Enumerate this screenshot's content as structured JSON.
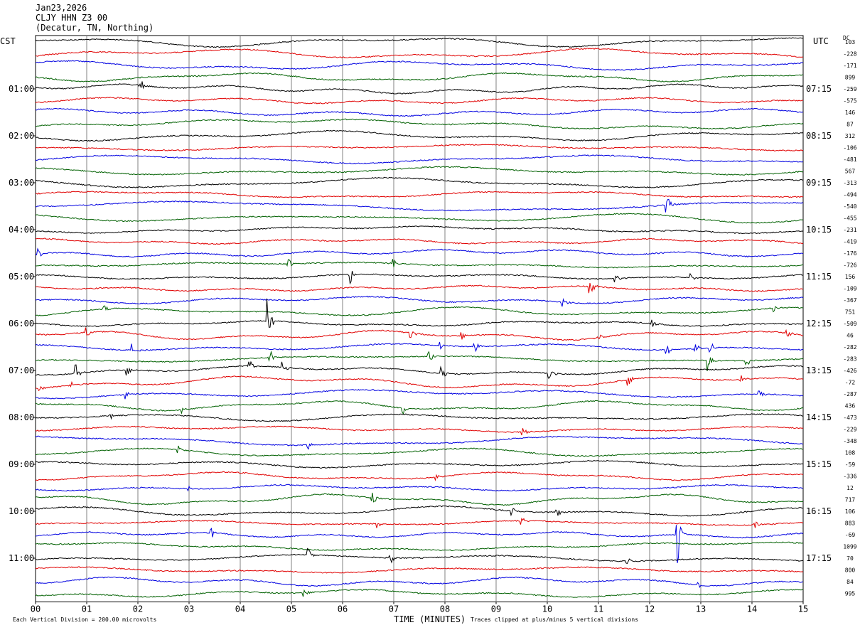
{
  "header": {
    "date": "Jan23,2026",
    "station": "CLJY HHN Z3 00",
    "location": "(Decatur, TN, Northing)"
  },
  "left_axis_title": "CST",
  "right_axis_title": "UTC",
  "dc_title": "DC",
  "footer": {
    "scale": "Each Vertical Division = 200.00 microvolts",
    "xlabel": "TIME (MINUTES)",
    "clip_note": "Traces clipped at plus/minus 5 vertical divisions"
  },
  "colors": {
    "trace_cycle": [
      "#000000",
      "#e00000",
      "#0000e0",
      "#006000"
    ],
    "grid": "#808080"
  },
  "chart_data": {
    "type": "line",
    "title": "CLJY HHN Z3 00 (Decatur, TN, Northing) Jan23,2026",
    "xlabel": "TIME (MINUTES)",
    "xlim": [
      0,
      15
    ],
    "x_ticks": [
      "00",
      "01",
      "02",
      "03",
      "04",
      "05",
      "06",
      "07",
      "08",
      "09",
      "10",
      "11",
      "12",
      "13",
      "14",
      "15"
    ],
    "row_count": 48,
    "left_time_labels": [
      {
        "row": 4,
        "label": "01:00"
      },
      {
        "row": 8,
        "label": "02:00"
      },
      {
        "row": 12,
        "label": "03:00"
      },
      {
        "row": 16,
        "label": "04:00"
      },
      {
        "row": 20,
        "label": "05:00"
      },
      {
        "row": 24,
        "label": "06:00"
      },
      {
        "row": 28,
        "label": "07:00"
      },
      {
        "row": 32,
        "label": "08:00"
      },
      {
        "row": 36,
        "label": "09:00"
      },
      {
        "row": 40,
        "label": "10:00"
      },
      {
        "row": 44,
        "label": "11:00"
      }
    ],
    "right_time_labels": [
      {
        "row": 4,
        "label": "07:15"
      },
      {
        "row": 8,
        "label": "08:15"
      },
      {
        "row": 12,
        "label": "09:15"
      },
      {
        "row": 16,
        "label": "10:15"
      },
      {
        "row": 20,
        "label": "11:15"
      },
      {
        "row": 24,
        "label": "12:15"
      },
      {
        "row": 28,
        "label": "13:15"
      },
      {
        "row": 32,
        "label": "14:15"
      },
      {
        "row": 36,
        "label": "15:15"
      },
      {
        "row": 40,
        "label": "16:15"
      },
      {
        "row": 44,
        "label": "17:15"
      }
    ],
    "dc_offsets": [
      "103",
      "-228",
      "-171",
      "899",
      "-259",
      "-575",
      "146",
      "87",
      "312",
      "-106",
      "-481",
      "567",
      "-313",
      "-494",
      "-540",
      "-455",
      "-231",
      "-419",
      "-176",
      "-726",
      "156",
      "-109",
      "-367",
      "751",
      "-509",
      "46",
      "-282",
      "-283",
      "-426",
      "-72",
      "-287",
      "436",
      "-473",
      "-229",
      "-348",
      "108",
      "-59",
      "-336",
      "12",
      "717",
      "106",
      "883",
      "-69",
      "1099",
      "70",
      "800",
      "84",
      "995"
    ],
    "events": [
      {
        "row": 4,
        "minute": 2.05,
        "amp": 0.6
      },
      {
        "row": 14,
        "minute": 12.35,
        "amp": 1.0
      },
      {
        "row": 18,
        "minute": 0.05,
        "amp": 0.5
      },
      {
        "row": 19,
        "minute": 4.95,
        "amp": 0.5
      },
      {
        "row": 19,
        "minute": 7.0,
        "amp": 0.5
      },
      {
        "row": 20,
        "minute": 6.15,
        "amp": 0.9
      },
      {
        "row": 20,
        "minute": 12.8,
        "amp": 0.4
      },
      {
        "row": 20,
        "minute": 11.35,
        "amp": 0.3
      },
      {
        "row": 21,
        "minute": 10.85,
        "amp": 0.8
      },
      {
        "row": 22,
        "minute": 10.3,
        "amp": 0.5
      },
      {
        "row": 23,
        "minute": 1.35,
        "amp": 0.4
      },
      {
        "row": 23,
        "minute": 14.45,
        "amp": 0.3
      },
      {
        "row": 24,
        "minute": 4.55,
        "amp": 2.2
      },
      {
        "row": 24,
        "minute": 12.05,
        "amp": 0.4
      },
      {
        "row": 25,
        "minute": 1.0,
        "amp": 0.5
      },
      {
        "row": 25,
        "minute": 7.35,
        "amp": 0.4
      },
      {
        "row": 25,
        "minute": 8.35,
        "amp": 0.3
      },
      {
        "row": 25,
        "minute": 11.0,
        "amp": 0.4
      },
      {
        "row": 25,
        "minute": 14.7,
        "amp": 0.4
      },
      {
        "row": 26,
        "minute": 1.9,
        "amp": 0.6
      },
      {
        "row": 26,
        "minute": 7.9,
        "amp": 0.4
      },
      {
        "row": 26,
        "minute": 8.6,
        "amp": 0.4
      },
      {
        "row": 26,
        "minute": 12.35,
        "amp": 0.5
      },
      {
        "row": 26,
        "minute": 12.9,
        "amp": 0.5
      },
      {
        "row": 26,
        "minute": 13.2,
        "amp": 0.6
      },
      {
        "row": 27,
        "minute": 4.6,
        "amp": 0.5
      },
      {
        "row": 27,
        "minute": 7.7,
        "amp": 0.7
      },
      {
        "row": 27,
        "minute": 13.15,
        "amp": 1.0
      },
      {
        "row": 27,
        "minute": 13.9,
        "amp": 0.6
      },
      {
        "row": 28,
        "minute": 0.8,
        "amp": 0.7
      },
      {
        "row": 28,
        "minute": 1.8,
        "amp": 0.5
      },
      {
        "row": 28,
        "minute": 4.2,
        "amp": 0.6
      },
      {
        "row": 28,
        "minute": 4.85,
        "amp": 0.6
      },
      {
        "row": 28,
        "minute": 7.95,
        "amp": 0.6
      },
      {
        "row": 28,
        "minute": 10.05,
        "amp": 0.5
      },
      {
        "row": 29,
        "minute": 0.1,
        "amp": 0.4
      },
      {
        "row": 29,
        "minute": 0.7,
        "amp": 0.4
      },
      {
        "row": 29,
        "minute": 11.6,
        "amp": 0.5
      },
      {
        "row": 29,
        "minute": 13.8,
        "amp": 0.4
      },
      {
        "row": 30,
        "minute": 1.75,
        "amp": 0.4
      },
      {
        "row": 30,
        "minute": 14.15,
        "amp": 0.5
      },
      {
        "row": 31,
        "minute": 2.85,
        "amp": 0.4
      },
      {
        "row": 31,
        "minute": 7.2,
        "amp": 0.6
      },
      {
        "row": 32,
        "minute": 1.45,
        "amp": 0.4
      },
      {
        "row": 33,
        "minute": 9.5,
        "amp": 0.6
      },
      {
        "row": 34,
        "minute": 5.35,
        "amp": 0.4
      },
      {
        "row": 35,
        "minute": 2.8,
        "amp": 0.3
      },
      {
        "row": 37,
        "minute": 7.85,
        "amp": 0.3
      },
      {
        "row": 38,
        "minute": 3.0,
        "amp": 0.3
      },
      {
        "row": 39,
        "minute": 6.6,
        "amp": 0.7
      },
      {
        "row": 40,
        "minute": 9.3,
        "amp": 0.4
      },
      {
        "row": 40,
        "minute": 10.2,
        "amp": 0.4
      },
      {
        "row": 41,
        "minute": 6.7,
        "amp": 0.4
      },
      {
        "row": 41,
        "minute": 9.5,
        "amp": 0.4
      },
      {
        "row": 41,
        "minute": 14.05,
        "amp": 0.4
      },
      {
        "row": 42,
        "minute": 3.45,
        "amp": 0.4
      },
      {
        "row": 42,
        "minute": 12.55,
        "amp": 2.6
      },
      {
        "row": 44,
        "minute": 5.35,
        "amp": 0.6
      },
      {
        "row": 44,
        "minute": 6.95,
        "amp": 0.5
      },
      {
        "row": 44,
        "minute": 11.55,
        "amp": 0.4
      },
      {
        "row": 46,
        "minute": 12.95,
        "amp": 0.5
      },
      {
        "row": 47,
        "minute": 5.25,
        "amp": 0.4
      }
    ]
  }
}
